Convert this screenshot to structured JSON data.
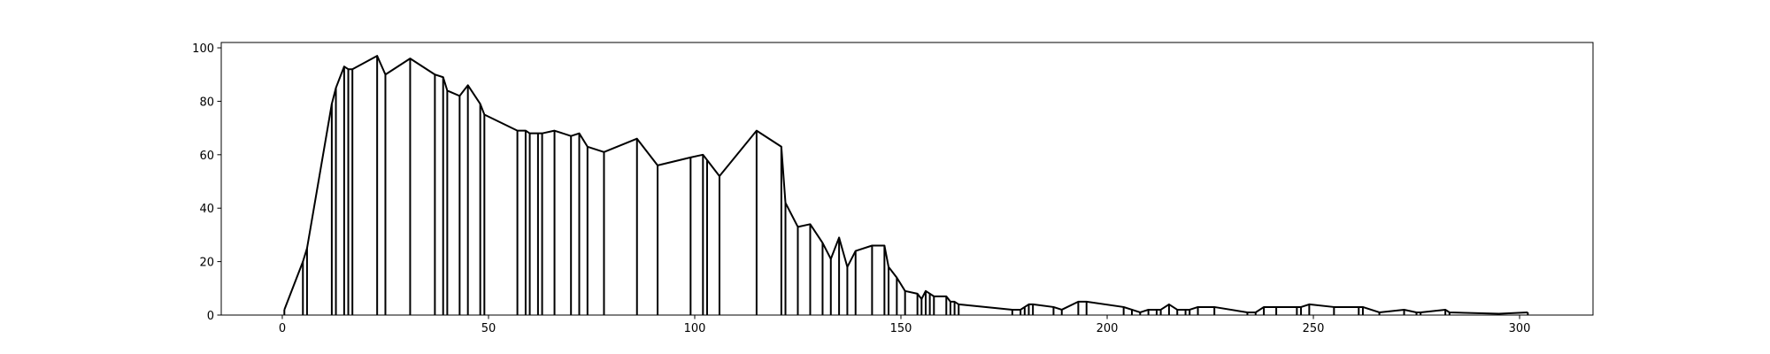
{
  "chart_data": {
    "type": "line",
    "stems": true,
    "color": "#000000",
    "x": [
      0.5,
      5,
      6,
      12,
      13,
      15,
      16,
      17,
      23,
      25,
      31,
      37,
      39,
      40,
      43,
      45,
      48,
      49,
      57,
      59,
      60,
      62,
      63,
      66,
      70,
      72,
      74,
      78,
      86,
      91,
      99,
      102,
      103,
      106,
      115,
      121,
      122,
      125,
      128,
      131,
      133,
      135,
      137,
      139,
      143,
      146,
      147,
      149,
      151,
      154,
      155,
      156,
      157,
      158,
      161,
      162,
      163,
      164,
      177,
      179,
      180,
      181,
      182,
      187,
      189,
      193,
      195,
      204,
      206,
      208,
      210,
      212,
      213,
      215,
      217,
      219,
      220,
      222,
      226,
      234,
      236,
      238,
      241,
      246,
      247,
      249,
      255,
      261,
      262,
      266,
      272,
      275,
      276,
      282,
      283,
      295,
      302
    ],
    "values": [
      2,
      20,
      25,
      79,
      85,
      93,
      92,
      92,
      97,
      90,
      96,
      90,
      89,
      84,
      82,
      86,
      79,
      75,
      69,
      69,
      68,
      68,
      68,
      69,
      67,
      68,
      63,
      61,
      66,
      56,
      59,
      60,
      58,
      52,
      69,
      63,
      42,
      33,
      34,
      27,
      21,
      29,
      18,
      24,
      26,
      26,
      18,
      14,
      9,
      8,
      6,
      9,
      8,
      7,
      7,
      5,
      5,
      4,
      2,
      2,
      3,
      4,
      4,
      3,
      2,
      5,
      5,
      3,
      2,
      1,
      2,
      2,
      2,
      4,
      2,
      2,
      2,
      3,
      3,
      1,
      1,
      3,
      3,
      3,
      3,
      4,
      3,
      3,
      3,
      1,
      2,
      1,
      1,
      2,
      1,
      0.5,
      1
    ],
    "xlim": [
      -14.8,
      317.8
    ],
    "ylim": [
      0,
      102
    ],
    "xticks": [
      0,
      50,
      100,
      150,
      200,
      250,
      300
    ],
    "yticks": [
      0,
      20,
      40,
      60,
      80,
      100
    ]
  }
}
